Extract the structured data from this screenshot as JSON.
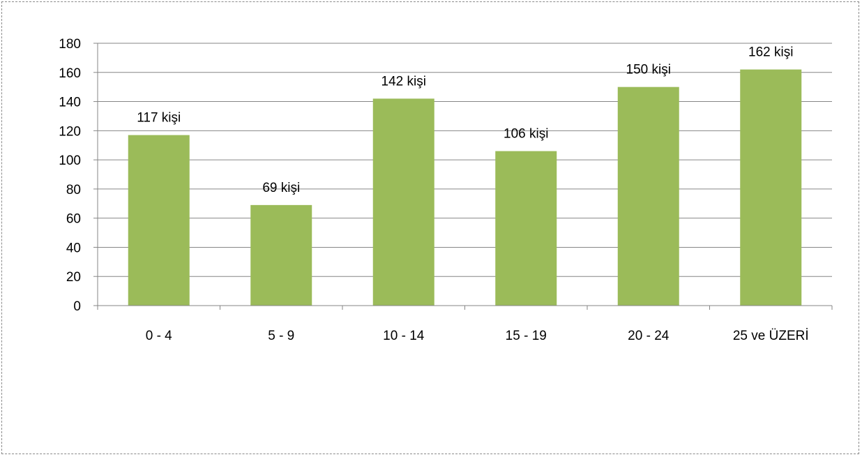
{
  "chart_data": {
    "type": "bar",
    "categories": [
      "0 - 4",
      "5 - 9",
      "10 - 14",
      "15 - 19",
      "20 - 24",
      "25 ve ÜZERİ"
    ],
    "values": [
      117,
      69,
      142,
      106,
      150,
      162
    ],
    "data_labels": [
      "117 kişi",
      "69 kişi",
      "142 kişi",
      "106 kişi",
      "150 kişi",
      "162 kişi"
    ],
    "yticks": [
      "0",
      "20",
      "40",
      "60",
      "80",
      "100",
      "120",
      "140",
      "160",
      "180"
    ],
    "ylim": [
      0,
      180
    ],
    "ytick_step": 20,
    "grid": true,
    "legend": "none",
    "bar_color": "#9BBB59",
    "title": "",
    "xlabel": "",
    "ylabel": ""
  }
}
